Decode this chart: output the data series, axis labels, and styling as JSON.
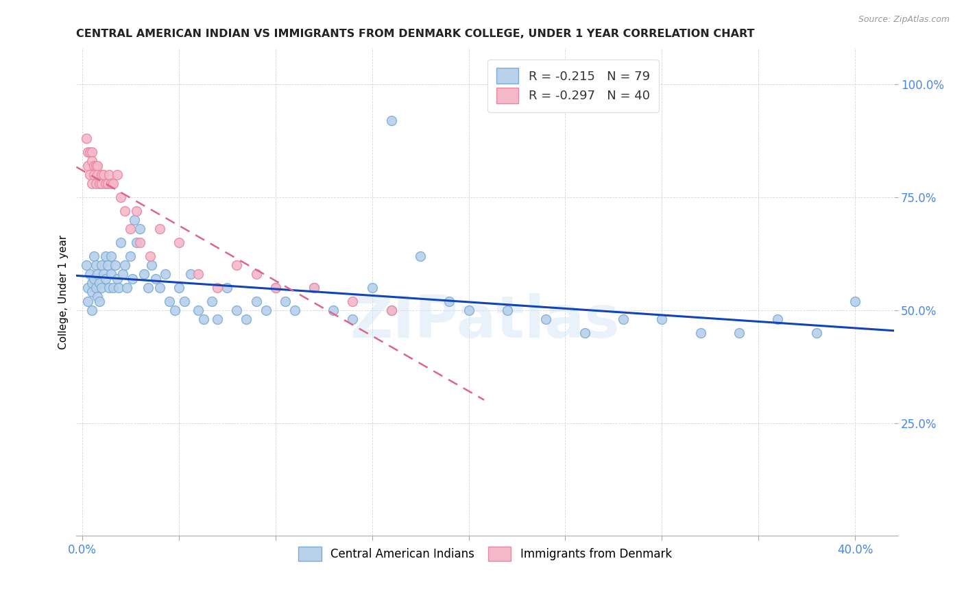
{
  "title": "CENTRAL AMERICAN INDIAN VS IMMIGRANTS FROM DENMARK COLLEGE, UNDER 1 YEAR CORRELATION CHART",
  "source": "Source: ZipAtlas.com",
  "ylabel": "College, Under 1 year",
  "ylim": [
    0.0,
    1.08
  ],
  "xlim": [
    -0.003,
    0.42
  ],
  "yticks": [
    0.0,
    0.25,
    0.5,
    0.75,
    1.0
  ],
  "ytick_labels": [
    "",
    "25.0%",
    "50.0%",
    "75.0%",
    "100.0%"
  ],
  "xticks": [
    0.0,
    0.05,
    0.1,
    0.15,
    0.2,
    0.25,
    0.3,
    0.35,
    0.4
  ],
  "blue_R": -0.215,
  "blue_N": 79,
  "pink_R": -0.297,
  "pink_N": 40,
  "blue_scatter_color": "#b8d0ea",
  "blue_edge_color": "#7aaed6",
  "pink_scatter_color": "#f5b8c8",
  "pink_edge_color": "#e888a8",
  "blue_line_color": "#1144bb",
  "pink_line_color": "#dd6688",
  "title_color": "#222222",
  "axis_label_color": "#4488ee",
  "watermark": "ZIPatlas",
  "legend_blue_text": "R = -0.215   N = 79",
  "legend_pink_text": "R = -0.297   N = 40",
  "bottom_legend_blue": "Central American Indians",
  "bottom_legend_pink": "Immigrants from Denmark",
  "blue_x": [
    0.002,
    0.003,
    0.003,
    0.004,
    0.005,
    0.005,
    0.005,
    0.006,
    0.006,
    0.007,
    0.007,
    0.008,
    0.008,
    0.009,
    0.009,
    0.01,
    0.01,
    0.011,
    0.012,
    0.012,
    0.013,
    0.014,
    0.015,
    0.015,
    0.016,
    0.017,
    0.018,
    0.019,
    0.02,
    0.021,
    0.022,
    0.023,
    0.025,
    0.026,
    0.027,
    0.028,
    0.03,
    0.032,
    0.034,
    0.036,
    0.038,
    0.04,
    0.043,
    0.045,
    0.048,
    0.05,
    0.053,
    0.056,
    0.06,
    0.063,
    0.067,
    0.07,
    0.075,
    0.08,
    0.085,
    0.09,
    0.095,
    0.1,
    0.105,
    0.11,
    0.12,
    0.13,
    0.14,
    0.15,
    0.16,
    0.175,
    0.19,
    0.2,
    0.22,
    0.24,
    0.26,
    0.28,
    0.3,
    0.32,
    0.34,
    0.36,
    0.38,
    0.4,
    0.16
  ],
  "blue_y": [
    0.6,
    0.55,
    0.52,
    0.58,
    0.56,
    0.54,
    0.5,
    0.62,
    0.57,
    0.6,
    0.55,
    0.58,
    0.53,
    0.56,
    0.52,
    0.6,
    0.55,
    0.58,
    0.62,
    0.57,
    0.6,
    0.55,
    0.62,
    0.58,
    0.55,
    0.6,
    0.57,
    0.55,
    0.65,
    0.58,
    0.6,
    0.55,
    0.62,
    0.57,
    0.7,
    0.65,
    0.68,
    0.58,
    0.55,
    0.6,
    0.57,
    0.55,
    0.58,
    0.52,
    0.5,
    0.55,
    0.52,
    0.58,
    0.5,
    0.48,
    0.52,
    0.48,
    0.55,
    0.5,
    0.48,
    0.52,
    0.5,
    0.55,
    0.52,
    0.5,
    0.55,
    0.5,
    0.48,
    0.55,
    0.5,
    0.62,
    0.52,
    0.5,
    0.5,
    0.48,
    0.45,
    0.48,
    0.48,
    0.45,
    0.45,
    0.48,
    0.45,
    0.52,
    0.92
  ],
  "pink_x": [
    0.002,
    0.003,
    0.003,
    0.004,
    0.004,
    0.005,
    0.005,
    0.005,
    0.006,
    0.006,
    0.007,
    0.007,
    0.008,
    0.008,
    0.009,
    0.01,
    0.01,
    0.011,
    0.012,
    0.013,
    0.014,
    0.015,
    0.016,
    0.018,
    0.02,
    0.022,
    0.025,
    0.028,
    0.03,
    0.035,
    0.04,
    0.05,
    0.06,
    0.07,
    0.08,
    0.09,
    0.1,
    0.12,
    0.14,
    0.16
  ],
  "pink_y": [
    0.88,
    0.85,
    0.82,
    0.85,
    0.8,
    0.85,
    0.83,
    0.78,
    0.82,
    0.8,
    0.82,
    0.78,
    0.82,
    0.8,
    0.78,
    0.8,
    0.78,
    0.8,
    0.78,
    0.78,
    0.8,
    0.78,
    0.78,
    0.8,
    0.75,
    0.72,
    0.68,
    0.72,
    0.65,
    0.62,
    0.68,
    0.65,
    0.58,
    0.55,
    0.6,
    0.58,
    0.55,
    0.55,
    0.52,
    0.5
  ]
}
